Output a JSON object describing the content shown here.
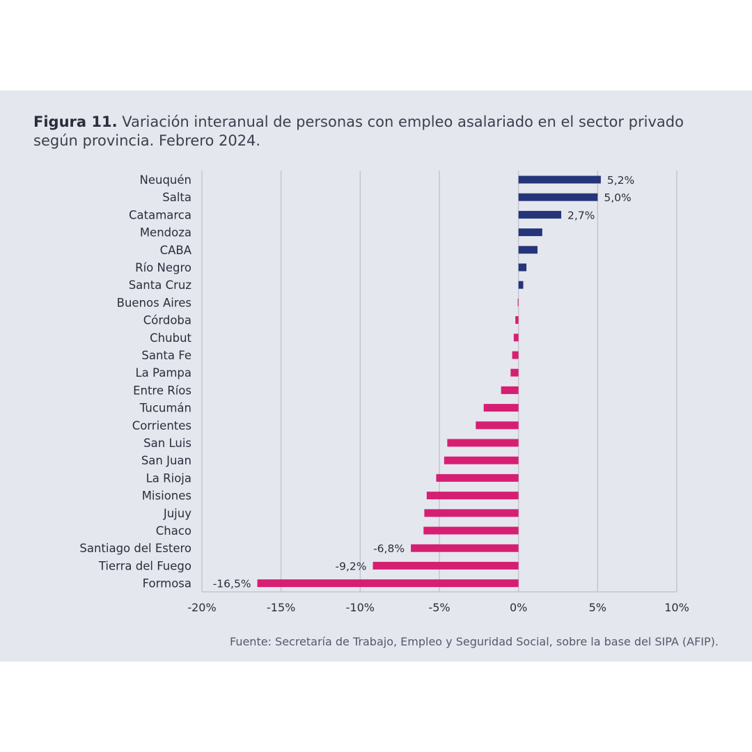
{
  "figure": {
    "label": "Figura 11.",
    "title": "Variación interanual de personas con empleo asalariado en el sector privado según provincia. Febrero 2024.",
    "source": "Fuente: Secretaría de Trabajo, Empleo y Seguridad Social, sobre la base del SIPA (AFIP)."
  },
  "chart_data": {
    "type": "bar",
    "orientation": "horizontal",
    "title": "",
    "xlabel": "",
    "ylabel": "",
    "xlim": [
      -20,
      10
    ],
    "ticks": [
      -20,
      -15,
      -10,
      -5,
      0,
      5,
      10
    ],
    "tick_labels": [
      "-20%",
      "-15%",
      "-10%",
      "-5%",
      "0%",
      "5%",
      "10%"
    ],
    "grid": true,
    "positive_color": "#25357a",
    "negative_color": "#d61f72",
    "categories": [
      "Neuquén",
      "Salta",
      "Catamarca",
      "Mendoza",
      "CABA",
      "Río Negro",
      "Santa Cruz",
      "Buenos Aires",
      "Córdoba",
      "Chubut",
      "Santa Fe",
      "La Pampa",
      "Entre Ríos",
      "Tucumán",
      "Corrientes",
      "San Luis",
      "San Juan",
      "La Rioja",
      "Misiones",
      "Jujuy",
      "Chaco",
      "Santiago del Estero",
      "Tierra del Fuego",
      "Formosa"
    ],
    "values": [
      5.2,
      5.0,
      2.7,
      1.5,
      1.2,
      0.5,
      0.3,
      -0.05,
      -0.2,
      -0.3,
      -0.4,
      -0.5,
      -1.1,
      -2.2,
      -2.7,
      -4.5,
      -4.7,
      -5.2,
      -5.8,
      -5.95,
      -6.0,
      -6.8,
      -9.2,
      -16.5
    ],
    "data_labels": [
      "5,2%",
      "5,0%",
      "2,7%",
      "",
      "",
      "",
      "",
      "",
      "",
      "",
      "",
      "",
      "",
      "",
      "",
      "",
      "",
      "",
      "",
      "",
      "",
      "-6,8%",
      "-9,2%",
      "-16,5%"
    ]
  }
}
